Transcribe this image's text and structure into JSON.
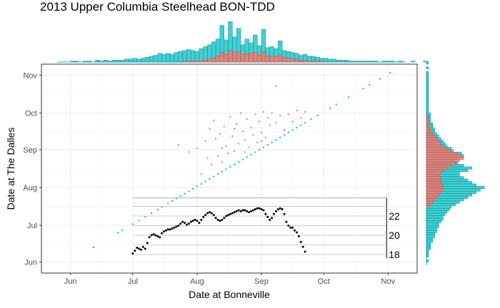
{
  "chart_data": {
    "type": "scatter",
    "title": "2013 Upper Columbia Steelhead BON-TDD",
    "xlabel": "Date at Bonneville",
    "ylabel": "Date at The Dalles",
    "x_ticks": [
      "Jun",
      "Jul",
      "Aug",
      "Sep",
      "Oct",
      "Nov"
    ],
    "y_ticks": [
      "Jun",
      "Jul",
      "Aug",
      "Sep",
      "Oct",
      "Nov"
    ],
    "xlim": [
      "2013-05-18",
      "2013-11-15"
    ],
    "ylim": [
      "2013-05-23",
      "2013-11-10"
    ],
    "grid": true,
    "colors": {
      "red": "#F8766D",
      "cyan": "#00BFC4",
      "panel_border": "#333333",
      "grid": "#ebebeb",
      "temp": "#000000"
    },
    "series": [
      {
        "color": "cyan",
        "points": [
          [
            "2013-06-12",
            "2013-06-13"
          ],
          [
            "2013-06-24",
            "2013-06-25"
          ],
          [
            "2013-06-26",
            "2013-06-27"
          ],
          [
            "2013-07-01",
            "2013-07-02"
          ],
          [
            "2013-07-04",
            "2013-07-05"
          ],
          [
            "2013-07-07",
            "2013-07-08"
          ],
          [
            "2013-07-10",
            "2013-07-11"
          ],
          [
            "2013-07-13",
            "2013-07-14"
          ],
          [
            "2013-07-15",
            "2013-07-16"
          ],
          [
            "2013-07-18",
            "2013-07-19"
          ],
          [
            "2013-07-20",
            "2013-07-21"
          ],
          [
            "2013-07-22",
            "2013-07-23"
          ],
          [
            "2013-07-24",
            "2013-07-25"
          ],
          [
            "2013-07-26",
            "2013-07-27"
          ],
          [
            "2013-07-28",
            "2013-07-29"
          ],
          [
            "2013-07-30",
            "2013-07-31"
          ],
          [
            "2013-08-01",
            "2013-08-02"
          ],
          [
            "2013-08-03",
            "2013-08-04"
          ],
          [
            "2013-08-05",
            "2013-08-06"
          ],
          [
            "2013-08-07",
            "2013-08-08"
          ],
          [
            "2013-08-09",
            "2013-08-10"
          ],
          [
            "2013-08-11",
            "2013-08-12"
          ],
          [
            "2013-08-13",
            "2013-08-14"
          ],
          [
            "2013-08-15",
            "2013-08-16"
          ],
          [
            "2013-08-17",
            "2013-08-18"
          ],
          [
            "2013-08-19",
            "2013-08-20"
          ],
          [
            "2013-08-21",
            "2013-08-22"
          ],
          [
            "2013-08-23",
            "2013-08-24"
          ],
          [
            "2013-08-25",
            "2013-08-26"
          ],
          [
            "2013-08-27",
            "2013-08-28"
          ],
          [
            "2013-08-29",
            "2013-08-30"
          ],
          [
            "2013-08-31",
            "2013-09-01"
          ],
          [
            "2013-09-02",
            "2013-09-03"
          ],
          [
            "2013-09-04",
            "2013-09-05"
          ],
          [
            "2013-09-06",
            "2013-09-07"
          ],
          [
            "2013-09-08",
            "2013-09-09"
          ],
          [
            "2013-09-10",
            "2013-09-11"
          ],
          [
            "2013-09-12",
            "2013-09-13"
          ],
          [
            "2013-09-14",
            "2013-09-15"
          ],
          [
            "2013-09-16",
            "2013-09-17"
          ],
          [
            "2013-09-18",
            "2013-09-19"
          ],
          [
            "2013-09-20",
            "2013-09-21"
          ],
          [
            "2013-09-22",
            "2013-09-23"
          ],
          [
            "2013-09-25",
            "2013-09-26"
          ],
          [
            "2013-09-28",
            "2013-09-29"
          ],
          [
            "2013-10-04",
            "2013-10-05"
          ],
          [
            "2013-10-07",
            "2013-10-08"
          ],
          [
            "2013-10-13",
            "2013-10-14"
          ],
          [
            "2013-10-20",
            "2013-10-21"
          ],
          [
            "2013-10-23",
            "2013-10-24"
          ],
          [
            "2013-10-28",
            "2013-10-29"
          ],
          [
            "2013-11-02",
            "2013-11-03"
          ]
        ]
      },
      {
        "color": "red",
        "points": [
          [
            "2013-07-23",
            "2013-09-05"
          ],
          [
            "2013-07-28",
            "2013-08-30"
          ],
          [
            "2013-08-01",
            "2013-09-02"
          ],
          [
            "2013-08-03",
            "2013-08-12"
          ],
          [
            "2013-08-05",
            "2013-09-08"
          ],
          [
            "2013-08-06",
            "2013-08-25"
          ],
          [
            "2013-08-07",
            "2013-09-18"
          ],
          [
            "2013-08-08",
            "2013-08-20"
          ],
          [
            "2013-08-09",
            "2013-09-25"
          ],
          [
            "2013-08-10",
            "2013-09-10"
          ],
          [
            "2013-08-11",
            "2013-08-27"
          ],
          [
            "2013-08-12",
            "2013-09-14"
          ],
          [
            "2013-08-13",
            "2013-08-22"
          ],
          [
            "2013-08-14",
            "2013-09-20"
          ],
          [
            "2013-08-15",
            "2013-09-04"
          ],
          [
            "2013-08-16",
            "2013-08-29"
          ],
          [
            "2013-08-17",
            "2013-09-28"
          ],
          [
            "2013-08-18",
            "2013-09-12"
          ],
          [
            "2013-08-19",
            "2013-08-31"
          ],
          [
            "2013-08-20",
            "2013-09-22"
          ],
          [
            "2013-08-21",
            "2013-09-06"
          ],
          [
            "2013-08-22",
            "2013-10-01"
          ],
          [
            "2013-08-23",
            "2013-09-16"
          ],
          [
            "2013-08-24",
            "2013-09-09"
          ],
          [
            "2013-08-25",
            "2013-09-26"
          ],
          [
            "2013-08-26",
            "2013-09-03"
          ],
          [
            "2013-08-27",
            "2013-09-19"
          ],
          [
            "2013-08-28",
            "2013-09-13"
          ],
          [
            "2013-08-29",
            "2013-09-30"
          ],
          [
            "2013-08-30",
            "2013-09-07"
          ],
          [
            "2013-08-31",
            "2013-09-24"
          ],
          [
            "2013-09-01",
            "2013-09-15"
          ],
          [
            "2013-09-02",
            "2013-10-02"
          ],
          [
            "2013-09-03",
            "2013-09-11"
          ],
          [
            "2013-09-04",
            "2013-09-27"
          ],
          [
            "2013-09-05",
            "2013-09-21"
          ],
          [
            "2013-09-06",
            "2013-10-01"
          ],
          [
            "2013-09-08",
            "2013-09-23"
          ],
          [
            "2013-09-10",
            "2013-09-29"
          ],
          [
            "2013-09-12",
            "2013-09-17"
          ],
          [
            "2013-09-14",
            "2013-09-30"
          ],
          [
            "2013-09-18",
            "2013-10-03"
          ],
          [
            "2013-09-20",
            "2013-09-27"
          ],
          [
            "2013-09-22",
            "2013-10-02"
          ],
          [
            "2013-09-16",
            "2013-09-24"
          ],
          [
            "2013-09-08",
            "2013-10-23"
          ],
          [
            "2013-08-13",
            "2013-09-02"
          ],
          [
            "2013-08-19",
            "2013-09-18"
          ],
          [
            "2013-08-24",
            "2013-08-30"
          ],
          [
            "2013-09-01",
            "2013-09-08"
          ]
        ]
      }
    ],
    "inset": {
      "ylabels": [
        "22",
        "20",
        "18"
      ],
      "y_values": [
        22,
        20,
        18
      ],
      "ylim": [
        17.6,
        23.9
      ],
      "xlim": [
        "2013-07-01",
        "2013-10-01"
      ]
    },
    "temperature": [
      [
        "2013-07-01",
        18.1
      ],
      [
        "2013-07-02",
        18.4
      ],
      [
        "2013-07-03",
        18.7
      ],
      [
        "2013-07-04",
        18.6
      ],
      [
        "2013-07-05",
        18.5
      ],
      [
        "2013-07-06",
        18.8
      ],
      [
        "2013-07-07",
        18.6
      ],
      [
        "2013-07-08",
        19.2
      ],
      [
        "2013-07-09",
        19.8
      ],
      [
        "2013-07-10",
        20.0
      ],
      [
        "2013-07-11",
        20.1
      ],
      [
        "2013-07-12",
        20.0
      ],
      [
        "2013-07-13",
        19.9
      ],
      [
        "2013-07-14",
        19.8
      ],
      [
        "2013-07-15",
        20.2
      ],
      [
        "2013-07-16",
        20.4
      ],
      [
        "2013-07-17",
        20.5
      ],
      [
        "2013-07-18",
        20.6
      ],
      [
        "2013-07-19",
        20.6
      ],
      [
        "2013-07-20",
        20.7
      ],
      [
        "2013-07-21",
        20.8
      ],
      [
        "2013-07-22",
        20.9
      ],
      [
        "2013-07-23",
        21.0
      ],
      [
        "2013-07-24",
        21.2
      ],
      [
        "2013-07-25",
        21.4
      ],
      [
        "2013-07-26",
        21.3
      ],
      [
        "2013-07-27",
        21.1
      ],
      [
        "2013-07-28",
        21.2
      ],
      [
        "2013-07-29",
        21.4
      ],
      [
        "2013-07-30",
        21.5
      ],
      [
        "2013-07-31",
        21.6
      ],
      [
        "2013-08-01",
        21.5
      ],
      [
        "2013-08-02",
        21.3
      ],
      [
        "2013-08-03",
        21.6
      ],
      [
        "2013-08-04",
        21.9
      ],
      [
        "2013-08-05",
        22.1
      ],
      [
        "2013-08-06",
        22.3
      ],
      [
        "2013-08-07",
        22.4
      ],
      [
        "2013-08-08",
        22.3
      ],
      [
        "2013-08-09",
        22.1
      ],
      [
        "2013-08-10",
        21.8
      ],
      [
        "2013-08-11",
        21.6
      ],
      [
        "2013-08-12",
        21.5
      ],
      [
        "2013-08-13",
        21.6
      ],
      [
        "2013-08-14",
        21.8
      ],
      [
        "2013-08-15",
        22.0
      ],
      [
        "2013-08-16",
        22.1
      ],
      [
        "2013-08-17",
        22.2
      ],
      [
        "2013-08-18",
        22.3
      ],
      [
        "2013-08-19",
        22.4
      ],
      [
        "2013-08-20",
        22.5
      ],
      [
        "2013-08-21",
        22.6
      ],
      [
        "2013-08-22",
        22.5
      ],
      [
        "2013-08-23",
        22.6
      ],
      [
        "2013-08-24",
        22.6
      ],
      [
        "2013-08-25",
        22.5
      ],
      [
        "2013-08-26",
        22.4
      ],
      [
        "2013-08-27",
        22.5
      ],
      [
        "2013-08-28",
        22.6
      ],
      [
        "2013-08-29",
        22.7
      ],
      [
        "2013-08-30",
        22.8
      ],
      [
        "2013-08-31",
        22.8
      ],
      [
        "2013-09-01",
        22.7
      ],
      [
        "2013-09-02",
        22.6
      ],
      [
        "2013-09-03",
        22.2
      ],
      [
        "2013-09-04",
        21.9
      ],
      [
        "2013-09-05",
        21.6
      ],
      [
        "2013-09-06",
        21.8
      ],
      [
        "2013-09-07",
        22.2
      ],
      [
        "2013-09-08",
        22.5
      ],
      [
        "2013-09-09",
        22.7
      ],
      [
        "2013-09-10",
        22.8
      ],
      [
        "2013-09-11",
        22.7
      ],
      [
        "2013-09-12",
        22.2
      ],
      [
        "2013-09-13",
        21.4
      ],
      [
        "2013-09-14",
        21.0
      ],
      [
        "2013-09-15",
        20.8
      ],
      [
        "2013-09-16",
        20.8
      ],
      [
        "2013-09-17",
        20.5
      ],
      [
        "2013-09-18",
        20.3
      ],
      [
        "2013-09-19",
        19.9
      ],
      [
        "2013-09-20",
        19.3
      ],
      [
        "2013-09-21",
        18.8
      ],
      [
        "2013-09-22",
        18.3
      ]
    ],
    "top_histogram": {
      "bin_start": "2013-06-01",
      "bin_days": 2,
      "total": [
        1,
        1,
        0,
        1,
        1,
        0,
        2,
        1,
        2,
        1,
        2,
        2,
        2,
        3,
        3,
        4,
        3,
        4,
        5,
        6,
        7,
        9,
        8,
        9,
        8,
        10,
        11,
        12,
        13,
        12,
        11,
        14,
        16,
        18,
        21,
        24,
        38,
        23,
        42,
        26,
        35,
        18,
        24,
        20,
        28,
        17,
        34,
        15,
        16,
        14,
        22,
        12,
        11,
        10,
        9,
        7,
        8,
        6,
        6,
        5,
        4,
        4,
        3,
        3,
        2,
        2,
        2,
        1,
        1,
        1,
        1,
        1,
        1,
        1,
        0,
        1,
        1,
        1,
        0,
        1,
        0,
        0,
        1,
        0,
        0,
        1
      ],
      "red": [
        0,
        0,
        0,
        0,
        0,
        0,
        0,
        0,
        0,
        0,
        0,
        0,
        0,
        0,
        0,
        0,
        0,
        0,
        0,
        0,
        0,
        0,
        0,
        0,
        0,
        0,
        0,
        1,
        1,
        1,
        1,
        2,
        2,
        3,
        4,
        6,
        10,
        8,
        12,
        10,
        11,
        8,
        9,
        9,
        10,
        7,
        11,
        6,
        6,
        6,
        7,
        5,
        4,
        3,
        3,
        2,
        2,
        1,
        1,
        1,
        1,
        0,
        0,
        0,
        0,
        0,
        0,
        0,
        0,
        0,
        0,
        0,
        0,
        0,
        0,
        0,
        0,
        0,
        0,
        0,
        0,
        0,
        0,
        0,
        0,
        0
      ]
    },
    "right_histogram": {
      "bin_start": "2013-06-01",
      "bin_days": 2,
      "total": [
        1,
        0,
        1,
        1,
        1,
        2,
        2,
        2,
        3,
        3,
        4,
        4,
        5,
        5,
        6,
        6,
        7,
        8,
        8,
        9,
        10,
        11,
        12,
        14,
        16,
        18,
        20,
        22,
        24,
        26,
        28,
        24,
        22,
        20,
        18,
        16,
        16,
        20,
        22,
        18,
        15,
        14,
        16,
        18,
        17,
        13,
        12,
        10,
        9,
        8,
        7,
        6,
        5,
        4,
        4,
        3,
        3,
        2,
        2,
        2,
        2,
        1,
        1,
        1,
        1,
        1,
        1,
        1,
        1,
        1,
        1,
        1,
        1,
        1,
        1,
        1,
        1,
        1,
        0,
        1,
        0,
        1
      ],
      "red": [
        0,
        0,
        0,
        0,
        0,
        0,
        0,
        0,
        0,
        0,
        0,
        0,
        0,
        0,
        0,
        0,
        0,
        0,
        0,
        0,
        0,
        0,
        1,
        2,
        3,
        4,
        5,
        6,
        7,
        8,
        8,
        8,
        7,
        7,
        7,
        6,
        7,
        8,
        10,
        12,
        14,
        16,
        18,
        17,
        15,
        12,
        10,
        8,
        7,
        6,
        5,
        4,
        3,
        2,
        2,
        1,
        1,
        1,
        1,
        1,
        0,
        0,
        0,
        0,
        0,
        0,
        0,
        0,
        0,
        0,
        0,
        0,
        0,
        0,
        0,
        0,
        0,
        0,
        0,
        0,
        0,
        0
      ]
    }
  }
}
